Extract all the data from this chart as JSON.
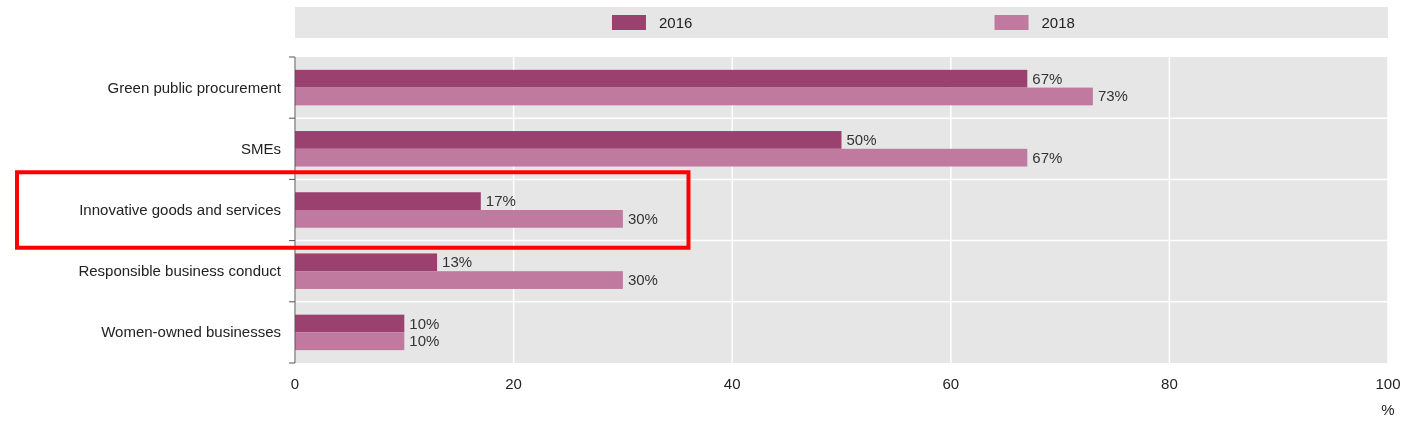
{
  "chart_data": {
    "type": "bar",
    "orientation": "horizontal",
    "categories": [
      "Green public procurement",
      "SMEs",
      "Innovative goods and services",
      "Responsible business conduct",
      "Women-owned businesses"
    ],
    "series": [
      {
        "name": "2016",
        "color": "#9b416f",
        "values": [
          67,
          50,
          17,
          13,
          10
        ],
        "value_labels": [
          "67%",
          "50%",
          "17%",
          "13%",
          "10%"
        ]
      },
      {
        "name": "2018",
        "color": "#c17a9f",
        "values": [
          73,
          67,
          30,
          30,
          10
        ],
        "value_labels": [
          "73%",
          "67%",
          "30%",
          "30%",
          "10%"
        ]
      }
    ],
    "xlim": [
      0,
      100
    ],
    "xticks": [
      0,
      20,
      40,
      60,
      80,
      100
    ],
    "xlabel": "%",
    "grid": "x",
    "legend": "top"
  }
}
